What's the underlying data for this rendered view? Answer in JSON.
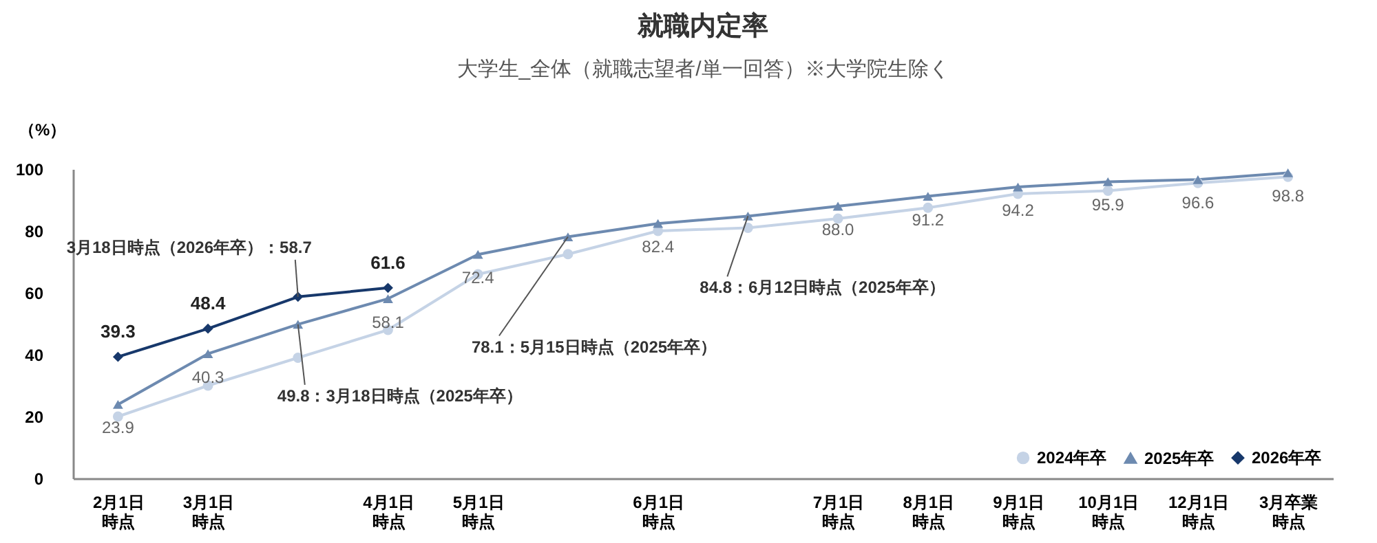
{
  "chart_data": {
    "type": "line",
    "title": "就職内定率",
    "subtitle": "大学生_全体（就職志望者/単一回答）※大学院生除く",
    "ylabel": "（%）",
    "categories": [
      "2月1日時点",
      "3月1日時点",
      null,
      "4月1日時点",
      "5月1日時点",
      null,
      "6月1日時点",
      null,
      "7月1日時点",
      "8月1日時点",
      "9月1日時点",
      "10月1日時点",
      "12月1日時点",
      "3月卒業時点"
    ],
    "series": [
      {
        "name": "2024年卒",
        "color": "#c5d3e6",
        "marker": "circle",
        "values": [
          20,
          30,
          39,
          48,
          66,
          72.5,
          80,
          81,
          84,
          87.5,
          92,
          93,
          95.5,
          97.5
        ]
      },
      {
        "name": "2025年卒",
        "color": "#6d8ab0",
        "marker": "triangle",
        "values": [
          23.9,
          40.3,
          49.8,
          58.1,
          72.4,
          78.1,
          82.4,
          84.8,
          88.0,
          91.2,
          94.2,
          95.9,
          96.6,
          98.8
        ],
        "value_labels": [
          "23.9",
          "40.3",
          "49.8：3月18日時点（2025年卒）",
          "58.1",
          "72.4",
          "78.1：5月15日時点（2025年卒）",
          "82.4",
          "84.8：6月12日時点（2025年卒）",
          "88.0",
          "91.2",
          "94.2",
          "95.9",
          "96.6",
          "98.8"
        ]
      },
      {
        "name": "2026年卒",
        "color": "#17386b",
        "marker": "diamond",
        "values": [
          39.3,
          48.4,
          58.7,
          61.6,
          null,
          null,
          null,
          null,
          null,
          null,
          null,
          null,
          null,
          null
        ],
        "value_labels": [
          "39.3",
          "48.4",
          "3月18日時点（2026年卒）：58.7",
          "61.6",
          null,
          null,
          null,
          null,
          null,
          null,
          null,
          null,
          null,
          null
        ]
      }
    ],
    "ylim": [
      0,
      100
    ],
    "yticks": [
      0,
      20,
      40,
      60,
      80,
      100
    ],
    "grid": false,
    "legend": "bottom right",
    "line_style": "solid"
  }
}
